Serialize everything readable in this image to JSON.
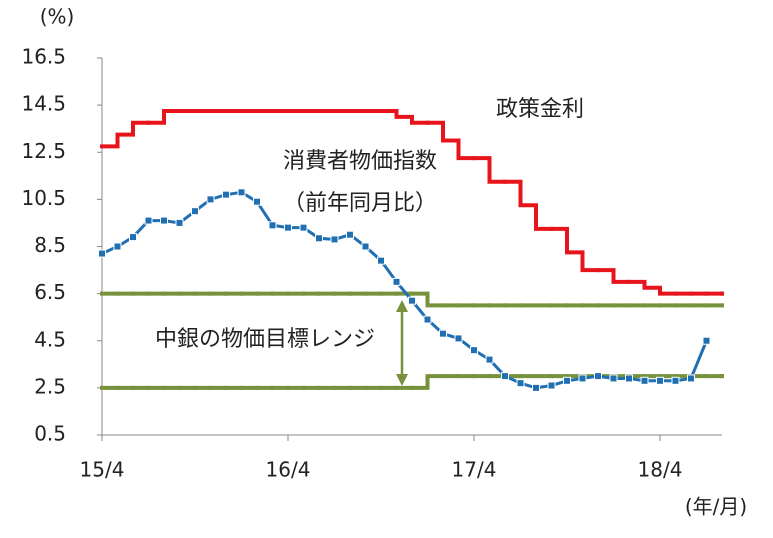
{
  "chart_data": {
    "type": "line",
    "y_label": "(%)",
    "x_label": "(年/月)",
    "categories": [
      "15/4",
      null,
      null,
      null,
      null,
      null,
      null,
      null,
      null,
      null,
      null,
      null,
      "16/4",
      null,
      null,
      null,
      null,
      null,
      null,
      null,
      null,
      null,
      null,
      null,
      "17/4",
      null,
      null,
      null,
      null,
      null,
      null,
      null,
      null,
      null,
      null,
      null,
      "18/4",
      null,
      null,
      null,
      null
    ],
    "series": [
      {
        "name": "政策金利",
        "color": "#e8141b",
        "step": true,
        "values": [
          12.75,
          13.25,
          13.75,
          13.75,
          14.25,
          14.25,
          14.25,
          14.25,
          14.25,
          14.25,
          14.25,
          14.25,
          14.25,
          14.25,
          14.25,
          14.25,
          14.25,
          14.25,
          14.25,
          14.0,
          13.75,
          13.75,
          13.0,
          12.25,
          12.25,
          11.25,
          11.25,
          10.25,
          9.25,
          9.25,
          8.25,
          7.5,
          7.5,
          7.0,
          7.0,
          6.75,
          6.5,
          6.5,
          6.5,
          6.5,
          6.5
        ]
      },
      {
        "name": "消費者物価指数",
        "subname": "（前年同月比）",
        "color": "#1f6fb2",
        "markers": true,
        "values": [
          8.2,
          8.5,
          8.9,
          9.6,
          9.6,
          9.5,
          10.0,
          10.5,
          10.7,
          10.8,
          10.4,
          9.4,
          9.3,
          9.3,
          8.85,
          8.8,
          9.0,
          8.5,
          7.9,
          7.0,
          6.2,
          5.4,
          4.8,
          4.6,
          4.1,
          3.7,
          3.0,
          2.7,
          2.5,
          2.6,
          2.8,
          2.9,
          3.0,
          2.9,
          2.9,
          2.8,
          2.8,
          2.8,
          2.9,
          4.5,
          null
        ]
      }
    ],
    "range": {
      "name": "中銀の物価目標レンジ",
      "color": "#76923c",
      "upper": [
        6.5,
        6.5,
        6.5,
        6.5,
        6.5,
        6.5,
        6.5,
        6.5,
        6.5,
        6.5,
        6.5,
        6.5,
        6.5,
        6.5,
        6.5,
        6.5,
        6.5,
        6.5,
        6.5,
        6.5,
        6.5,
        6.0,
        6.0,
        6.0,
        6.0,
        6.0,
        6.0,
        6.0,
        6.0,
        6.0,
        6.0,
        6.0,
        6.0,
        6.0,
        6.0,
        6.0,
        6.0,
        6.0,
        6.0,
        6.0,
        6.0
      ],
      "lower": [
        2.5,
        2.5,
        2.5,
        2.5,
        2.5,
        2.5,
        2.5,
        2.5,
        2.5,
        2.5,
        2.5,
        2.5,
        2.5,
        2.5,
        2.5,
        2.5,
        2.5,
        2.5,
        2.5,
        2.5,
        2.5,
        3.0,
        3.0,
        3.0,
        3.0,
        3.0,
        3.0,
        3.0,
        3.0,
        3.0,
        3.0,
        3.0,
        3.0,
        3.0,
        3.0,
        3.0,
        3.0,
        3.0,
        3.0,
        3.0,
        3.0
      ]
    },
    "ylim": [
      0.5,
      16.5
    ],
    "yticks": [
      0.5,
      2.5,
      4.5,
      6.5,
      8.5,
      10.5,
      12.5,
      14.5,
      16.5
    ],
    "grid": false
  }
}
